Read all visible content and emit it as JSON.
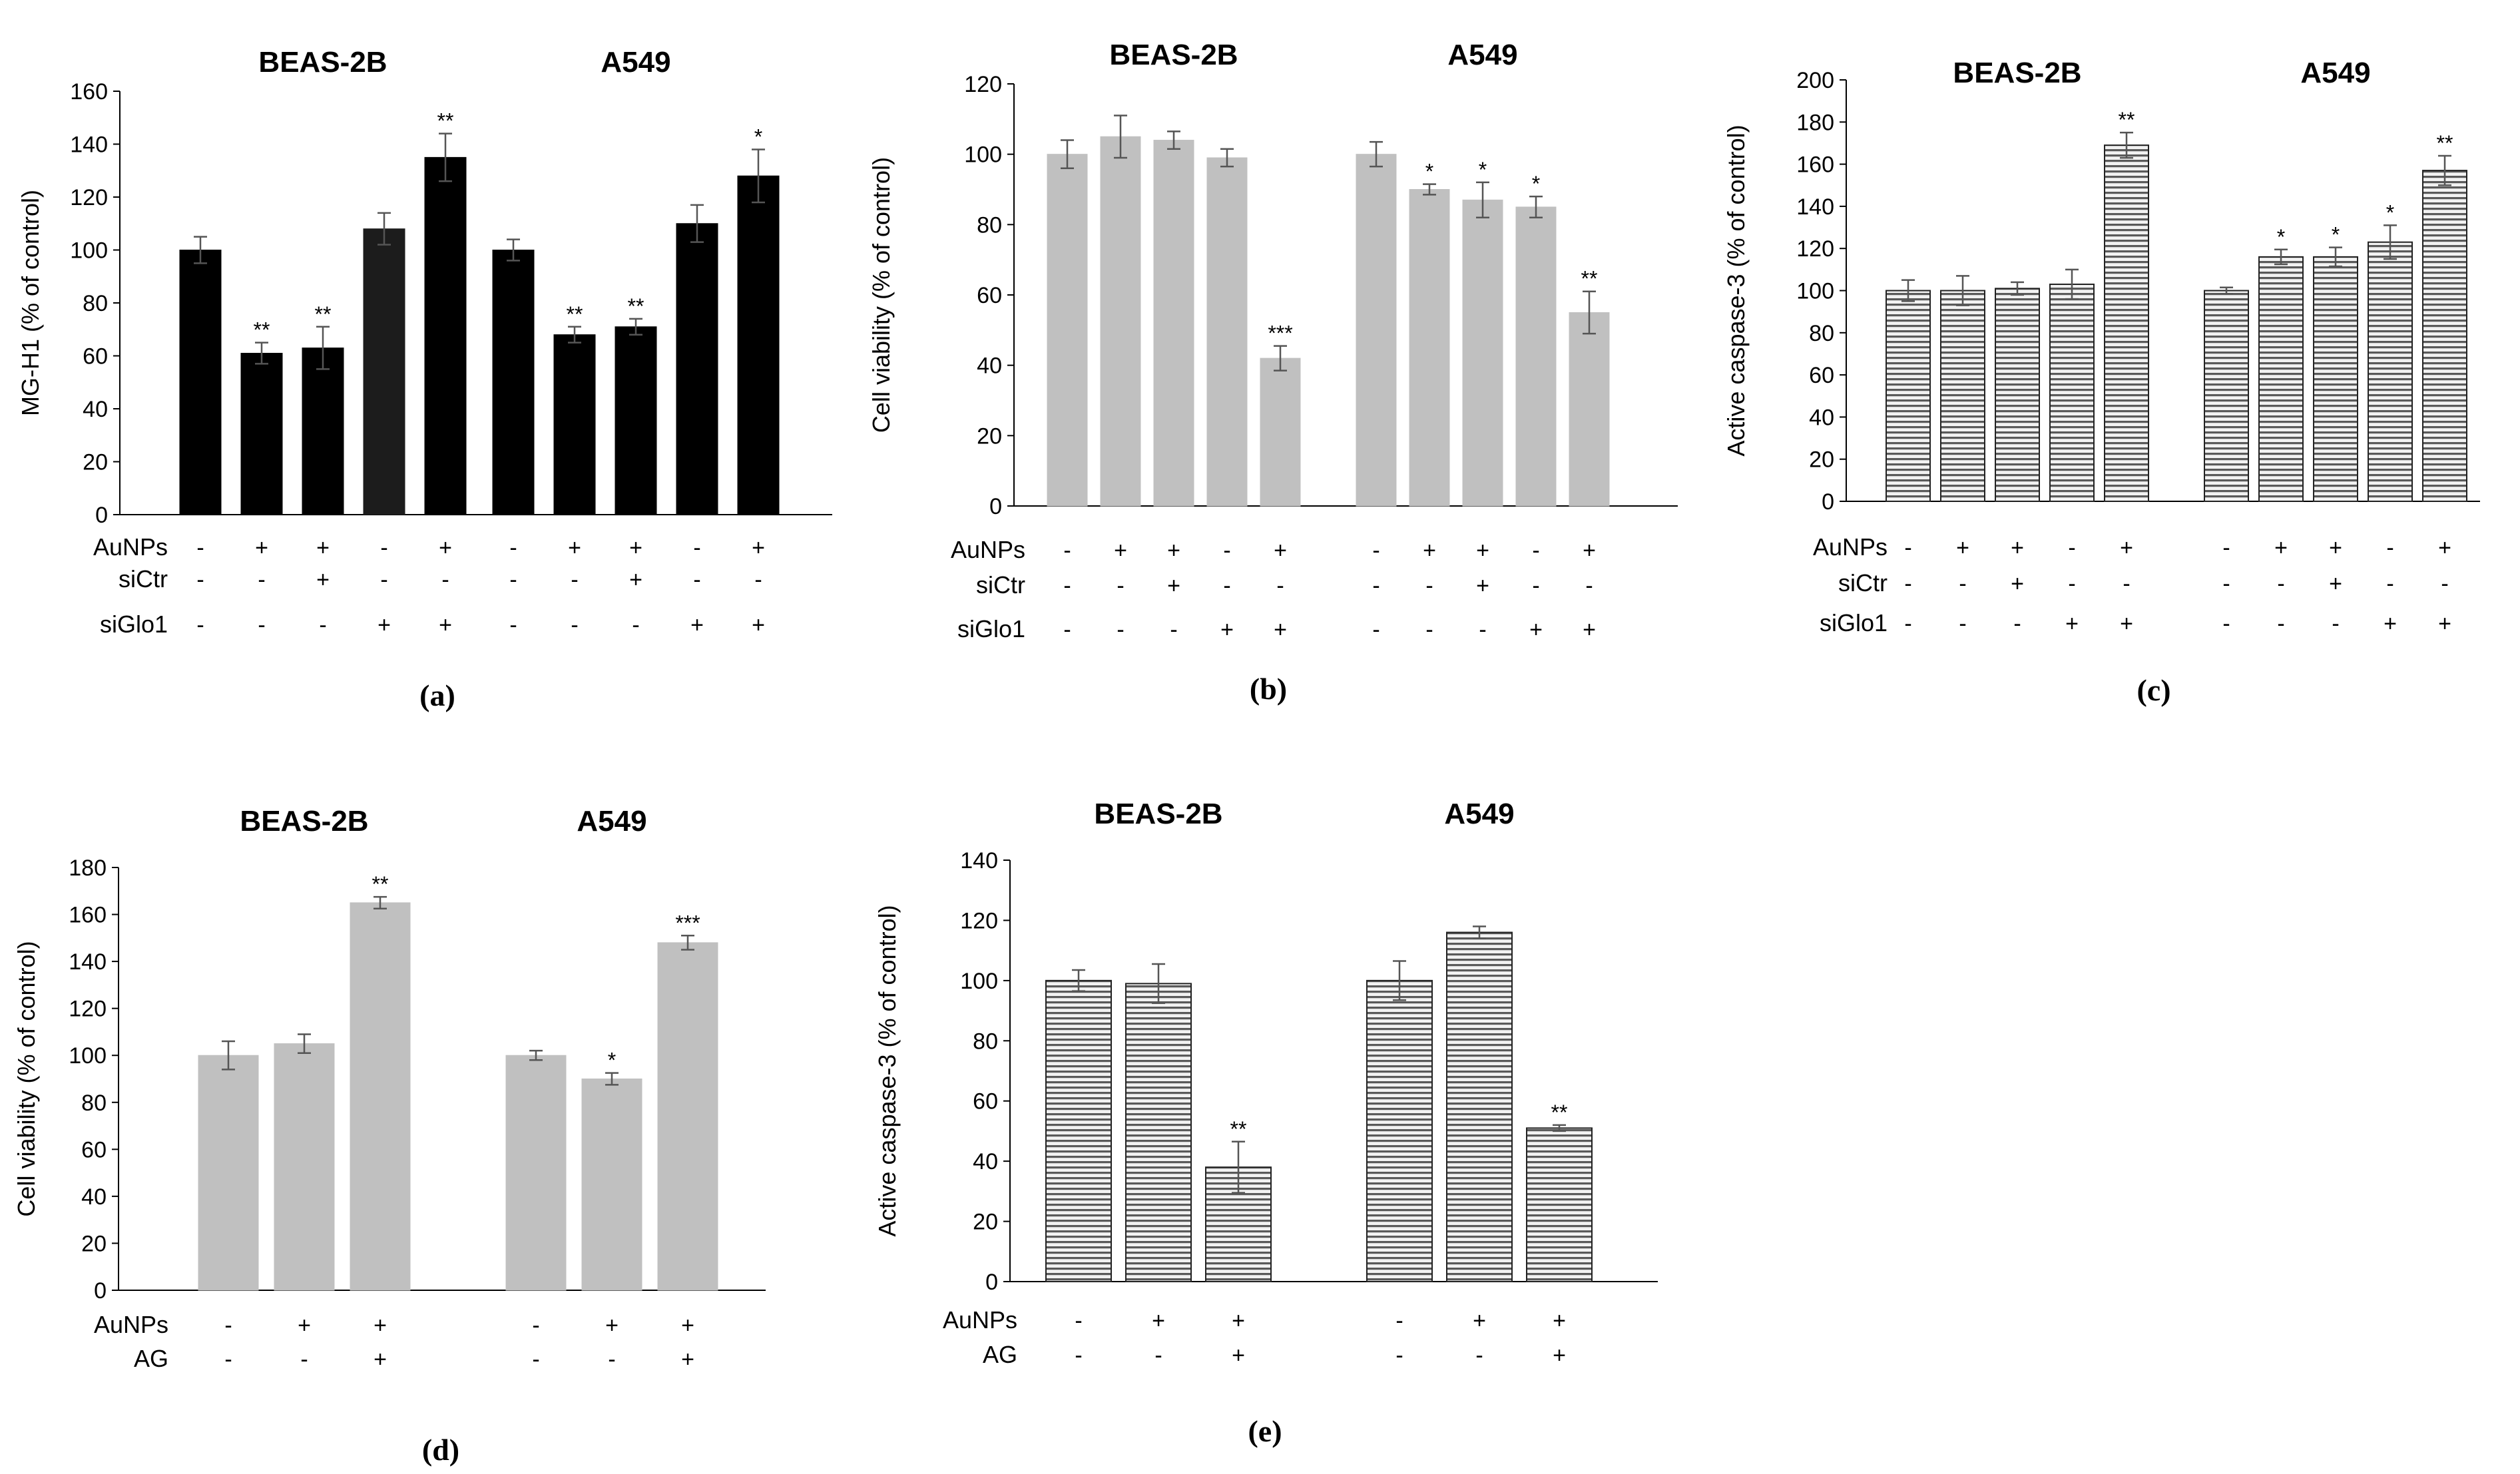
{
  "patterns": {
    "gray": "#c0c0c0",
    "gray_stroke": "#c0c0c0",
    "black": "#000000",
    "dark": "#1a1a1a",
    "striped_light": "#f0f0f0",
    "striped_dark": "#555555"
  },
  "chart_data": [
    {
      "id": "a",
      "type": "bar",
      "panel_label": "(a)",
      "ylabel": "MG-H1 (% of control)",
      "ylim": [
        0,
        160
      ],
      "yticks": [
        0,
        20,
        40,
        60,
        80,
        100,
        120,
        140,
        160
      ],
      "fill": "black",
      "groups": [
        {
          "title": "BEAS-2B",
          "values": [
            100,
            61,
            63,
            108,
            135
          ],
          "errors": [
            5,
            4,
            8,
            6,
            9
          ],
          "sig": [
            "",
            "**",
            "**",
            "",
            "**"
          ],
          "bar_styles": [
            "black",
            "black",
            "black",
            "dark",
            "black"
          ]
        },
        {
          "title": "A549",
          "values": [
            100,
            68,
            71,
            110,
            128
          ],
          "errors": [
            4,
            3,
            3,
            7,
            10
          ],
          "sig": [
            "",
            "**",
            "**",
            "",
            "*"
          ],
          "bar_styles": [
            "black",
            "black",
            "black",
            "black",
            "black"
          ]
        }
      ],
      "treatment_labels": [
        "AuNPs",
        "siCtr",
        "siGlo1"
      ],
      "treatments": [
        [
          "-",
          "+",
          "+",
          "-",
          "+"
        ],
        [
          "-",
          "-",
          "+",
          "-",
          "-"
        ],
        [
          "-",
          "-",
          "-",
          "+",
          "+"
        ]
      ]
    },
    {
      "id": "b",
      "type": "bar",
      "panel_label": "(b)",
      "ylabel": "Cell viability (% of control)",
      "ylim": [
        0,
        120
      ],
      "yticks": [
        0,
        20,
        40,
        60,
        80,
        100,
        120
      ],
      "fill": "gray",
      "groups": [
        {
          "title": "BEAS-2B",
          "values": [
            100,
            105,
            104,
            99,
            42
          ],
          "errors": [
            4,
            6,
            2.5,
            2.5,
            3.5
          ],
          "sig": [
            "",
            "",
            "",
            "",
            "***"
          ]
        },
        {
          "title": "A549",
          "values": [
            100,
            90,
            87,
            85,
            55
          ],
          "errors": [
            3.5,
            1.5,
            5,
            3,
            6
          ],
          "sig": [
            "",
            "*",
            "*",
            "*",
            "**"
          ]
        }
      ],
      "treatment_labels": [
        "AuNPs",
        "siCtr",
        "siGlo1"
      ],
      "treatments": [
        [
          "-",
          "+",
          "+",
          "-",
          "+"
        ],
        [
          "-",
          "-",
          "+",
          "-",
          "-"
        ],
        [
          "-",
          "-",
          "-",
          "+",
          "+"
        ]
      ]
    },
    {
      "id": "c",
      "type": "bar",
      "panel_label": "(c)",
      "ylabel": "Active caspase-3 (% of control)",
      "ylim": [
        0,
        200
      ],
      "yticks": [
        0,
        20,
        40,
        60,
        80,
        100,
        120,
        140,
        160,
        180,
        200
      ],
      "fill": "striped",
      "groups": [
        {
          "title": "BEAS-2B",
          "values": [
            100,
            100,
            101,
            103,
            169
          ],
          "errors": [
            5,
            7,
            3,
            7,
            6
          ],
          "sig": [
            "",
            "",
            "",
            "",
            "**"
          ]
        },
        {
          "title": "A549",
          "values": [
            100,
            116,
            116,
            123,
            157
          ],
          "errors": [
            1.5,
            3.5,
            4.5,
            8,
            7
          ],
          "sig": [
            "",
            "*",
            "*",
            "*",
            "**"
          ]
        }
      ],
      "treatment_labels": [
        "AuNPs",
        "siCtr",
        "siGlo1"
      ],
      "treatments": [
        [
          "-",
          "+",
          "+",
          "-",
          "+"
        ],
        [
          "-",
          "-",
          "+",
          "-",
          "-"
        ],
        [
          "-",
          "-",
          "-",
          "+",
          "+"
        ]
      ]
    },
    {
      "id": "d",
      "type": "bar",
      "panel_label": "(d)",
      "ylabel": "Cell viability (% of control)",
      "ylim": [
        0,
        180
      ],
      "yticks": [
        0,
        20,
        40,
        60,
        80,
        100,
        120,
        140,
        160,
        180
      ],
      "fill": "gray",
      "groups": [
        {
          "title": "BEAS-2B",
          "values": [
            100,
            105,
            165
          ],
          "errors": [
            6,
            4,
            2.5
          ],
          "sig": [
            "",
            "",
            "**"
          ]
        },
        {
          "title": "A549",
          "values": [
            100,
            90,
            148
          ],
          "errors": [
            2,
            2.5,
            3
          ],
          "sig": [
            "",
            "*",
            "***"
          ]
        }
      ],
      "treatment_labels": [
        "AuNPs",
        "AG"
      ],
      "treatments": [
        [
          "-",
          "+",
          "+"
        ],
        [
          "-",
          "-",
          "+"
        ]
      ]
    },
    {
      "id": "e",
      "type": "bar",
      "panel_label": "(e)",
      "ylabel": "Active caspase-3 (% of control)",
      "ylim": [
        0,
        140
      ],
      "yticks": [
        0,
        20,
        40,
        60,
        80,
        100,
        120,
        140
      ],
      "fill": "striped",
      "groups": [
        {
          "title": "BEAS-2B",
          "values": [
            100,
            99,
            38
          ],
          "errors": [
            3.5,
            6.5,
            8.5
          ],
          "sig": [
            "",
            "",
            "**"
          ]
        },
        {
          "title": "A549",
          "values": [
            100,
            116,
            51
          ],
          "errors": [
            6.5,
            2,
            1
          ],
          "sig": [
            "",
            "",
            "**"
          ]
        }
      ],
      "treatment_labels": [
        "AuNPs",
        "AG"
      ],
      "treatments": [
        [
          "-",
          "+",
          "+"
        ],
        [
          "-",
          "-",
          "+"
        ]
      ]
    }
  ]
}
